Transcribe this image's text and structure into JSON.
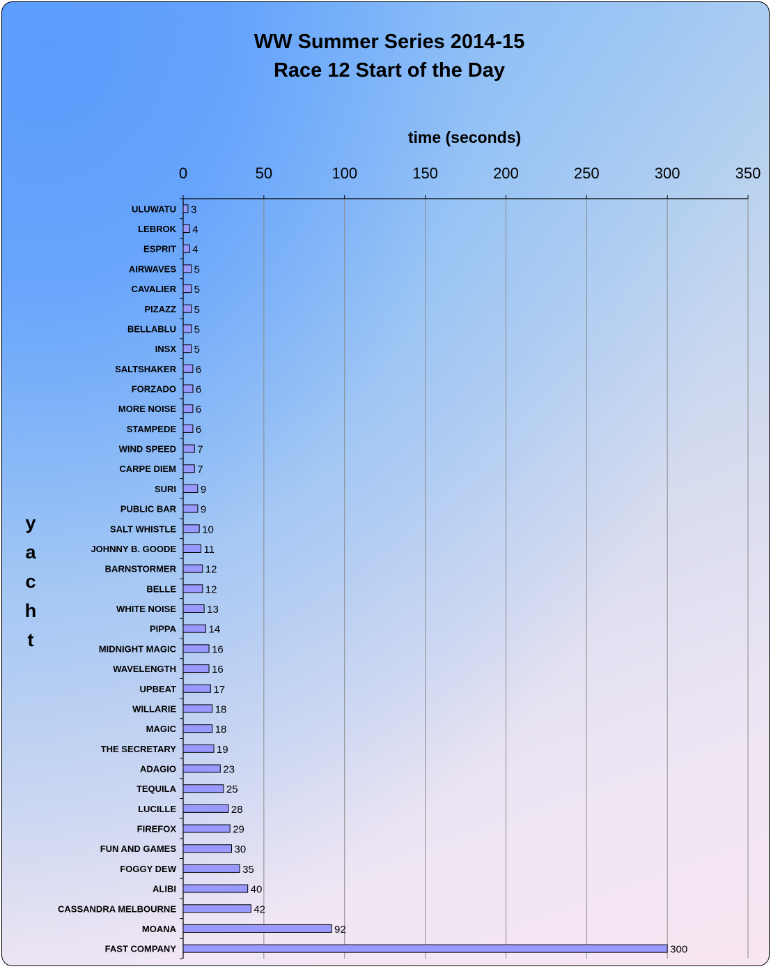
{
  "chart_data": {
    "type": "bar",
    "orientation": "horizontal",
    "title": [
      "WW Summer Series 2014-15",
      "Race 12 Start of the Day"
    ],
    "xlabel": "time (seconds)",
    "ylabel": "yacht",
    "xlim": [
      0,
      350
    ],
    "xticks": [
      0,
      50,
      100,
      150,
      200,
      250,
      300,
      350
    ],
    "x_axis_position": "top",
    "grid": true,
    "bar_color": "#9999ff",
    "categories": [
      "ULUWATU",
      "LEBROK",
      "ESPRIT",
      "AIRWAVES",
      "CAVALIER",
      "PIZAZZ",
      "BELLABLU",
      "INSX",
      "SALTSHAKER",
      "FORZADO",
      "MORE NOISE",
      "STAMPEDE",
      "WIND SPEED",
      "CARPE DIEM",
      "SURI",
      "PUBLIC BAR",
      "SALT WHISTLE",
      "JOHNNY B. GOODE",
      "BARNSTORMER",
      "BELLE",
      "WHITE NOISE",
      "PIPPA",
      "MIDNIGHT MAGIC",
      "WAVELENGTH",
      "UPBEAT",
      "WILLARIE",
      "MAGIC",
      "THE SECRETARY",
      "ADAGIO",
      "TEQUILA",
      "LUCILLE",
      "FIREFOX",
      "FUN AND GAMES",
      "FOGGY DEW",
      "ALIBI",
      "CASSANDRA MELBOURNE",
      "MOANA",
      "FAST COMPANY"
    ],
    "values": [
      3,
      4,
      4,
      5,
      5,
      5,
      5,
      5,
      6,
      6,
      6,
      6,
      7,
      7,
      9,
      9,
      10,
      11,
      12,
      12,
      13,
      14,
      16,
      16,
      17,
      18,
      18,
      19,
      23,
      25,
      28,
      29,
      30,
      35,
      40,
      42,
      92,
      300
    ]
  }
}
